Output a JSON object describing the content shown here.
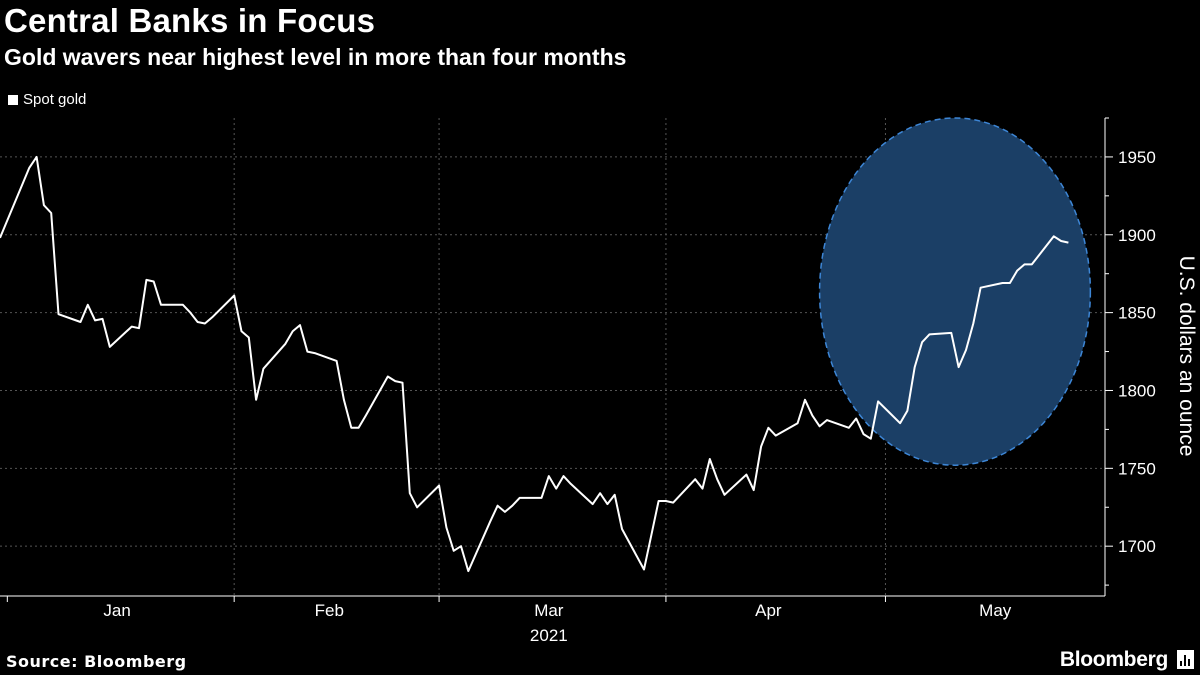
{
  "header": {
    "title": "Central Banks in Focus",
    "subtitle": "Gold wavers near highest level in more than four months"
  },
  "footer": {
    "source": "Source: Bloomberg",
    "brand": "Bloomberg"
  },
  "colors": {
    "background": "#000000",
    "line": "#ffffff",
    "highlight_fill": "#1b3f66",
    "highlight_stroke": "#3d86d6",
    "grid": "#555555"
  },
  "chart_data": {
    "type": "line",
    "title": "Central Banks in Focus",
    "subtitle": "Gold wavers near highest level in more than four months",
    "xlabel": "2021",
    "ylabel": "U.S. dollars an ounce",
    "ylim": [
      1668,
      1975
    ],
    "yticks": [
      1700,
      1750,
      1800,
      1850,
      1900,
      1950
    ],
    "y_axis_side": "right",
    "grid": true,
    "legend_position": "top-left",
    "x_year_label": "2021",
    "month_labels": [
      "Jan",
      "Feb",
      "Mar",
      "Apr",
      "May"
    ],
    "series": [
      {
        "name": "Spot gold",
        "x": [
          "2020-12-31",
          "2021-01-04",
          "2021-01-05",
          "2021-01-06",
          "2021-01-07",
          "2021-01-08",
          "2021-01-11",
          "2021-01-12",
          "2021-01-13",
          "2021-01-14",
          "2021-01-15",
          "2021-01-18",
          "2021-01-19",
          "2021-01-20",
          "2021-01-21",
          "2021-01-22",
          "2021-01-25",
          "2021-01-26",
          "2021-01-27",
          "2021-01-28",
          "2021-01-29",
          "2021-02-01",
          "2021-02-02",
          "2021-02-03",
          "2021-02-04",
          "2021-02-05",
          "2021-02-08",
          "2021-02-09",
          "2021-02-10",
          "2021-02-11",
          "2021-02-12",
          "2021-02-15",
          "2021-02-16",
          "2021-02-17",
          "2021-02-18",
          "2021-02-19",
          "2021-02-22",
          "2021-02-23",
          "2021-02-24",
          "2021-02-25",
          "2021-02-26",
          "2021-03-01",
          "2021-03-02",
          "2021-03-03",
          "2021-03-04",
          "2021-03-05",
          "2021-03-08",
          "2021-03-09",
          "2021-03-10",
          "2021-03-11",
          "2021-03-12",
          "2021-03-15",
          "2021-03-16",
          "2021-03-17",
          "2021-03-18",
          "2021-03-19",
          "2021-03-22",
          "2021-03-23",
          "2021-03-24",
          "2021-03-25",
          "2021-03-26",
          "2021-03-29",
          "2021-03-30",
          "2021-03-31",
          "2021-04-01",
          "2021-04-02",
          "2021-04-05",
          "2021-04-06",
          "2021-04-07",
          "2021-04-08",
          "2021-04-09",
          "2021-04-12",
          "2021-04-13",
          "2021-04-14",
          "2021-04-15",
          "2021-04-16",
          "2021-04-19",
          "2021-04-20",
          "2021-04-21",
          "2021-04-22",
          "2021-04-23",
          "2021-04-26",
          "2021-04-27",
          "2021-04-28",
          "2021-04-29",
          "2021-04-30",
          "2021-05-03",
          "2021-05-04",
          "2021-05-05",
          "2021-05-06",
          "2021-05-07",
          "2021-05-10",
          "2021-05-11",
          "2021-05-12",
          "2021-05-13",
          "2021-05-14",
          "2021-05-17",
          "2021-05-18",
          "2021-05-19",
          "2021-05-20",
          "2021-05-21",
          "2021-05-24",
          "2021-05-25",
          "2021-05-26"
        ],
        "values": [
          1898,
          1943,
          1950,
          1919,
          1914,
          1849,
          1844,
          1855,
          1845,
          1846,
          1828,
          1841,
          1840,
          1871,
          1870,
          1855,
          1855,
          1850,
          1844,
          1843,
          1847,
          1861,
          1838,
          1834,
          1794,
          1814,
          1830,
          1838,
          1842,
          1825,
          1824,
          1819,
          1794,
          1776,
          1776,
          1784,
          1809,
          1806,
          1805,
          1734,
          1725,
          1739,
          1712,
          1697,
          1700,
          1684,
          1716,
          1726,
          1722,
          1726,
          1731,
          1731,
          1745,
          1737,
          1745,
          1740,
          1727,
          1734,
          1727,
          1733,
          1711,
          1685,
          1707,
          1729,
          1729,
          1728,
          1743,
          1737,
          1756,
          1743,
          1733,
          1746,
          1736,
          1764,
          1776,
          1771,
          1779,
          1794,
          1784,
          1777,
          1781,
          1776,
          1782,
          1772,
          1769,
          1793,
          1779,
          1787,
          1815,
          1831,
          1836,
          1837,
          1815,
          1826,
          1843,
          1866,
          1869,
          1869,
          1877,
          1881,
          1881,
          1899,
          1896,
          1895
        ]
      }
    ],
    "annotation": "circle highlighting May"
  }
}
